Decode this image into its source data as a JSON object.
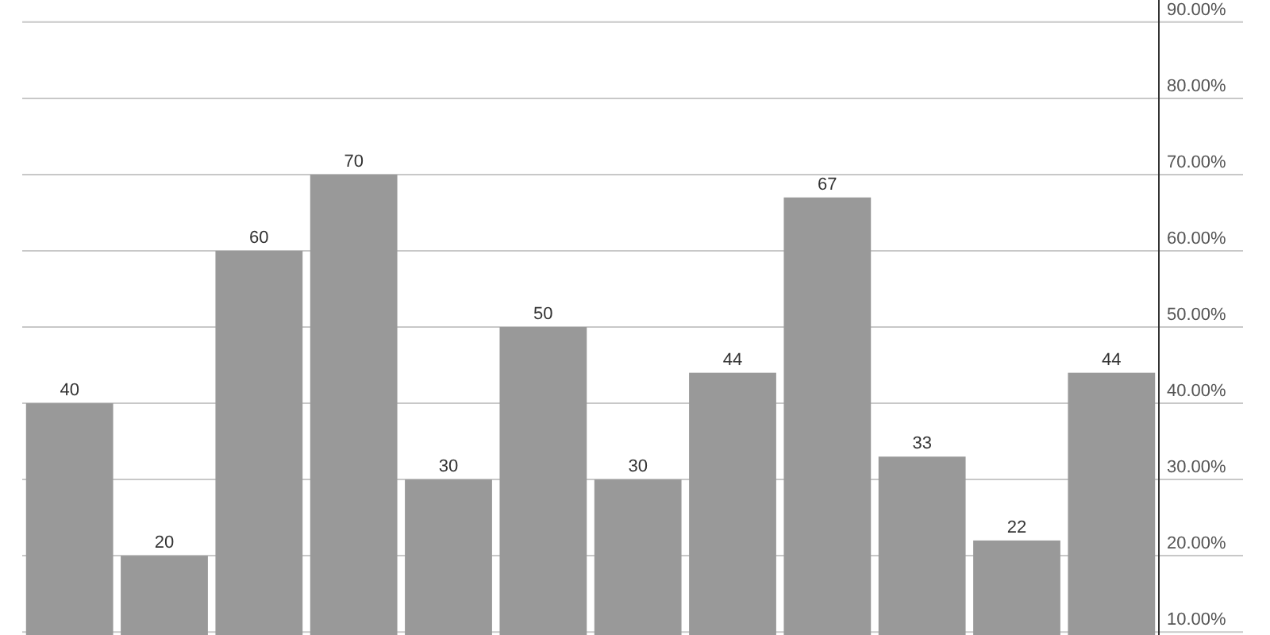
{
  "chart_data": {
    "type": "bar",
    "categories": [
      null,
      null,
      null,
      null,
      null,
      null,
      null,
      null,
      null,
      null,
      null,
      null
    ],
    "values": [
      40,
      20,
      60,
      70,
      30,
      50,
      30,
      44,
      67,
      33,
      22,
      44
    ],
    "color": "#999999",
    "data_labels": true,
    "grid": "y",
    "tick_labels": "y",
    "ylim": [
      9.6,
      92.9
    ],
    "yticks": [
      {
        "value": 10,
        "label": "10.00%"
      },
      {
        "value": 20,
        "label": "20.00%"
      },
      {
        "value": 30,
        "label": "30.00%"
      },
      {
        "value": 40,
        "label": "40.00%"
      },
      {
        "value": 50,
        "label": "50.00%"
      },
      {
        "value": 60,
        "label": "60.00%"
      },
      {
        "value": 70,
        "label": "70.00%"
      },
      {
        "value": 80,
        "label": "80.00%"
      },
      {
        "value": 90,
        "label": "90.00%"
      }
    ]
  }
}
